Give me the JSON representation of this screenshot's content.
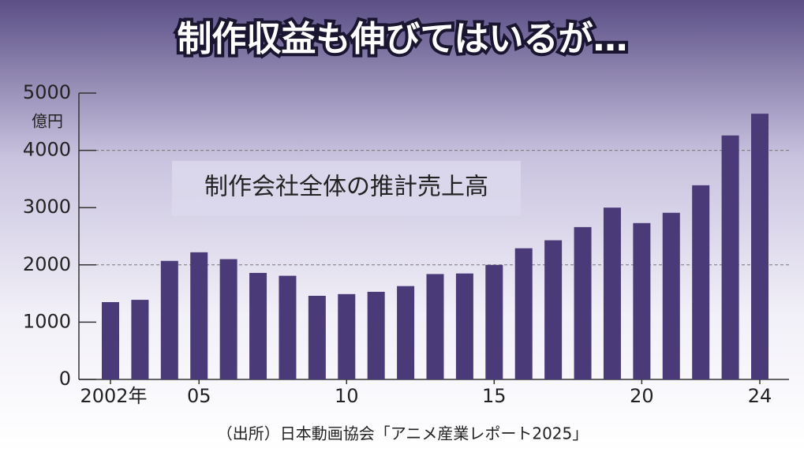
{
  "chart_data": {
    "type": "bar",
    "title": "制作収益も伸びてはいるが…",
    "annotation": "制作会社全体の推計売上高",
    "y_unit": "億円",
    "source": "（出所）日本動画協会「アニメ産業レポート2025」",
    "categories": [
      "2002年",
      null,
      null,
      "05",
      null,
      null,
      null,
      null,
      "10",
      null,
      null,
      null,
      null,
      "15",
      null,
      null,
      null,
      null,
      "20",
      null,
      null,
      null,
      "24"
    ],
    "values": [
      1350,
      1390,
      2070,
      2220,
      2100,
      1860,
      1810,
      1460,
      1490,
      1530,
      1630,
      1840,
      1850,
      2000,
      2290,
      2430,
      2660,
      3000,
      2730,
      2910,
      3390,
      4260,
      4640
    ],
    "color": "#4b3a78",
    "ylim": [
      0,
      5000
    ],
    "yticks": [
      0,
      1000,
      2000,
      3000,
      4000,
      5000
    ],
    "grid_lines": [
      2000,
      4000
    ]
  }
}
